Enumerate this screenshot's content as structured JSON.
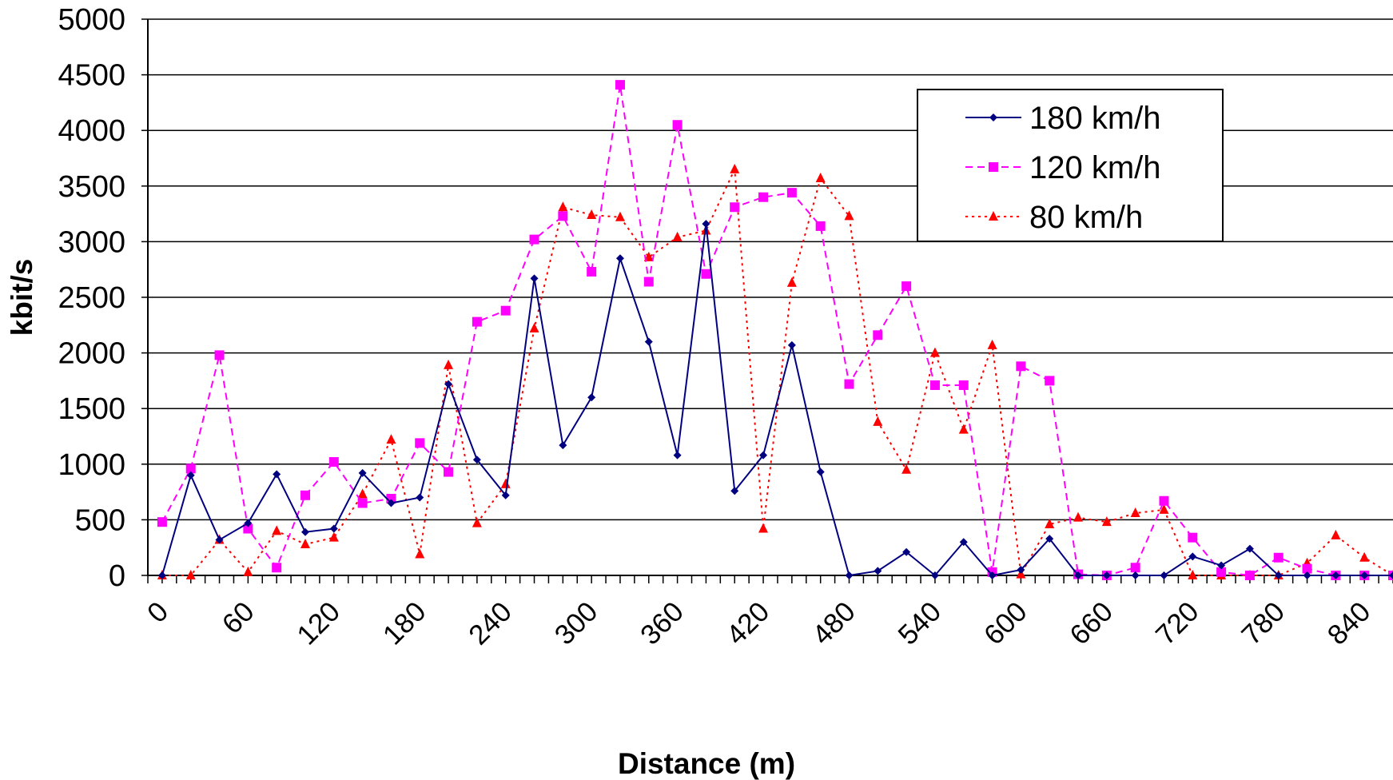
{
  "chart_data": {
    "type": "line",
    "title": "",
    "xlabel": "Distance (m)",
    "ylabel": "kbit/s",
    "ylim": [
      0,
      5000
    ],
    "xlim": [
      0,
      870
    ],
    "grid": true,
    "legend_position": "top-right",
    "yticks": [
      "0",
      "500",
      "1000",
      "1500",
      "2000",
      "2500",
      "3000",
      "3500",
      "4000",
      "4500",
      "5000"
    ],
    "xticks": [
      "0",
      "60",
      "120",
      "180",
      "240",
      "300",
      "360",
      "420",
      "480",
      "540",
      "600",
      "660",
      "720",
      "780",
      "840"
    ],
    "x": [
      10,
      30,
      50,
      70,
      90,
      110,
      130,
      150,
      170,
      190,
      210,
      230,
      250,
      270,
      290,
      310,
      330,
      350,
      370,
      390,
      410,
      430,
      450,
      470,
      490,
      510,
      530,
      550,
      570,
      590,
      610,
      630,
      650,
      670,
      690,
      710,
      730,
      750,
      770,
      790,
      810,
      830,
      850,
      870
    ],
    "series": [
      {
        "name": "180 km/h",
        "color": "#000080",
        "style": "solid",
        "marker": "diamond",
        "values": [
          0,
          900,
          320,
          470,
          910,
          390,
          420,
          920,
          650,
          700,
          1720,
          1040,
          720,
          2670,
          1170,
          1600,
          2850,
          2100,
          1080,
          3160,
          760,
          1080,
          2070,
          930,
          0,
          40,
          210,
          0,
          300,
          0,
          50,
          330,
          0,
          0,
          0,
          0,
          170,
          90,
          240,
          0,
          0,
          0,
          0,
          0
        ]
      },
      {
        "name": "120 km/h",
        "color": "#ff00ff",
        "style": "dashed",
        "marker": "square",
        "values": [
          480,
          960,
          1980,
          420,
          70,
          720,
          1020,
          650,
          690,
          1190,
          930,
          2280,
          2380,
          3020,
          3230,
          2730,
          4410,
          2640,
          4050,
          2710,
          3310,
          3400,
          3440,
          3140,
          1720,
          2160,
          2600,
          1710,
          1710,
          30,
          1880,
          1750,
          10,
          0,
          70,
          670,
          340,
          30,
          0,
          160,
          60,
          0,
          0,
          0
        ]
      },
      {
        "name": "80 km/h",
        "color": "#ff0000",
        "style": "dotted",
        "marker": "triangle",
        "values": [
          0,
          0,
          320,
          30,
          400,
          280,
          340,
          730,
          1220,
          190,
          1890,
          470,
          820,
          2220,
          3310,
          3240,
          3220,
          2860,
          3040,
          3100,
          3650,
          420,
          2630,
          3570,
          3230,
          1380,
          950,
          2000,
          1310,
          2070,
          10,
          460,
          520,
          480,
          560,
          590,
          0,
          0,
          0,
          0,
          110,
          360,
          160,
          0
        ]
      }
    ]
  }
}
